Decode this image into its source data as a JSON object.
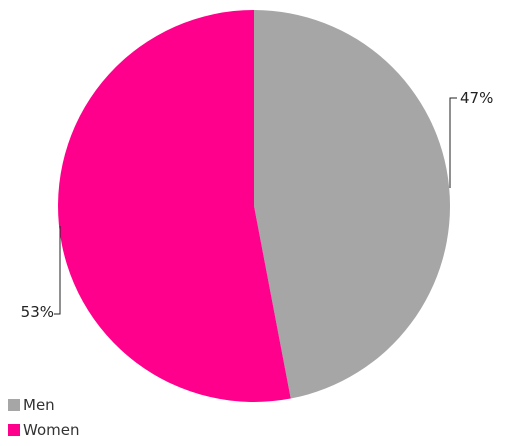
{
  "chart_data": {
    "type": "pie",
    "categories": [
      "Men",
      "Women"
    ],
    "values": [
      47,
      53
    ],
    "labels": [
      "47%",
      "53%"
    ],
    "colors": [
      "#a6a6a6",
      "#ff008c"
    ],
    "title": "",
    "legend_position": "bottom-left"
  },
  "legend": {
    "items": [
      {
        "label": "Men",
        "color": "#a6a6a6"
      },
      {
        "label": "Women",
        "color": "#ff008c"
      }
    ]
  }
}
